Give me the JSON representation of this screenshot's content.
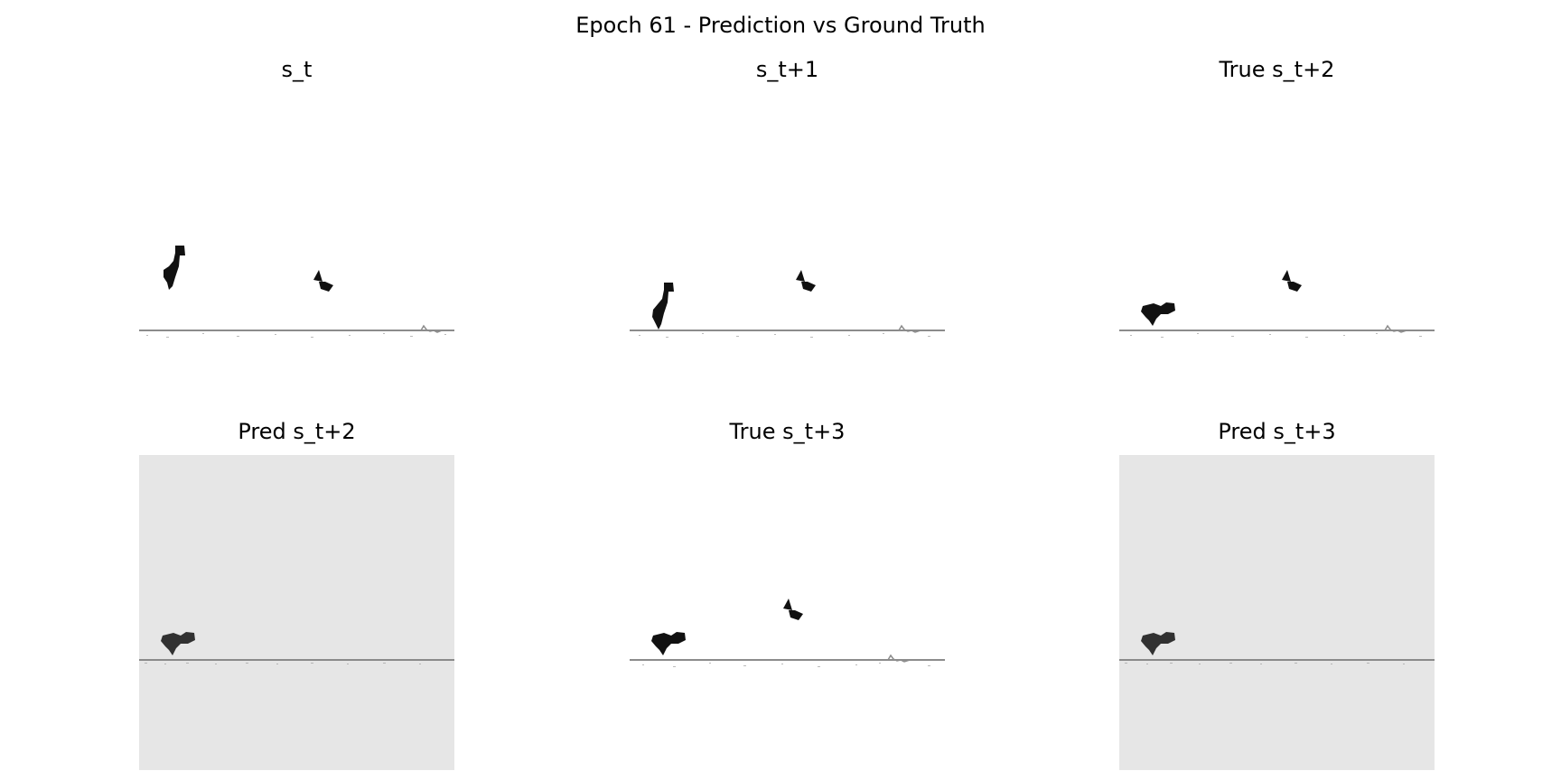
{
  "figure": {
    "title": "Epoch 61 - Prediction vs Ground Truth"
  },
  "panels": [
    {
      "title": "s_t",
      "dino_pose": "jumping",
      "bird_visible": true,
      "cactus_visible": true,
      "background": "#ffffff"
    },
    {
      "title": "s_t+1",
      "dino_pose": "landing",
      "bird_visible": true,
      "cactus_visible": true,
      "background": "#ffffff"
    },
    {
      "title": "True s_t+2",
      "dino_pose": "ducking",
      "bird_visible": true,
      "cactus_visible": true,
      "background": "#ffffff"
    },
    {
      "title": "Pred s_t+2",
      "dino_pose": "ducking",
      "bird_visible": false,
      "cactus_visible": false,
      "background": "#e6e6e6"
    },
    {
      "title": "True s_t+3",
      "dino_pose": "ducking",
      "bird_visible": true,
      "cactus_visible": true,
      "background": "#ffffff"
    },
    {
      "title": "Pred s_t+3",
      "dino_pose": "ducking",
      "bird_visible": false,
      "cactus_visible": false,
      "background": "#e6e6e6"
    }
  ],
  "colors": {
    "ground": "#8c8c8c",
    "sprite": "#111111",
    "pred_background": "#e6e6e6"
  }
}
